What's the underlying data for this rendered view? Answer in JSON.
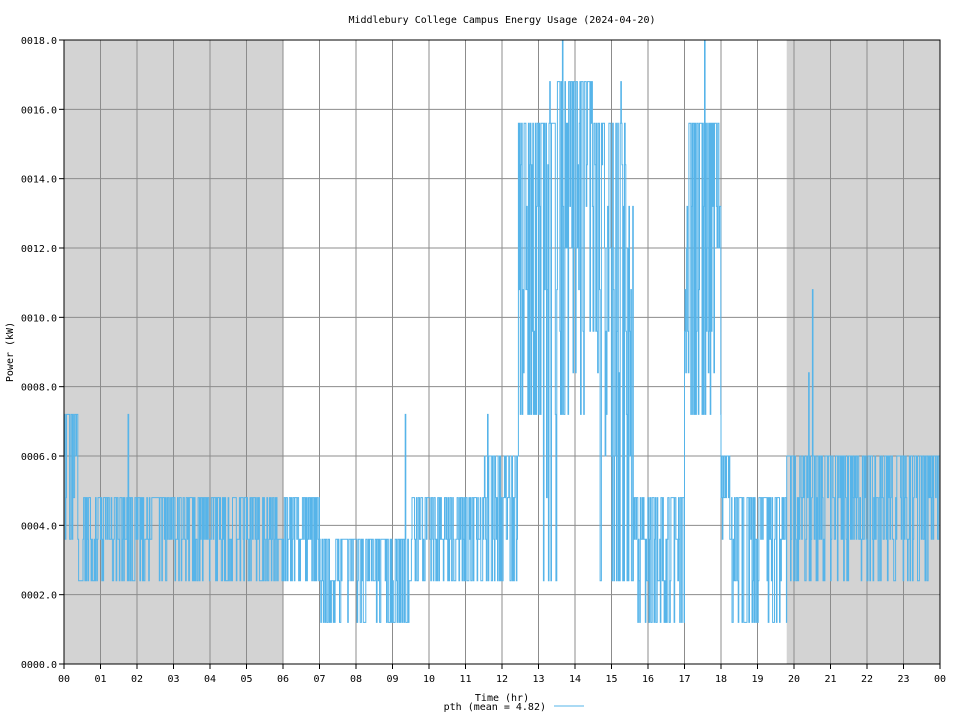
{
  "chart_data": {
    "type": "line",
    "title": "Middlebury College Campus Energy Usage (2024-04-20)",
    "xlabel": "Time (hr)",
    "ylabel": "Power (kW)",
    "xlim": [
      0,
      24
    ],
    "ylim": [
      0,
      18
    ],
    "x_tick_labels": [
      "00",
      "01",
      "02",
      "03",
      "04",
      "05",
      "06",
      "07",
      "08",
      "09",
      "10",
      "11",
      "12",
      "13",
      "14",
      "15",
      "16",
      "17",
      "18",
      "19",
      "20",
      "21",
      "22",
      "23",
      "00"
    ],
    "y_ticks": [
      0,
      2,
      4,
      6,
      8,
      10,
      12,
      14,
      16,
      18
    ],
    "y_tick_labels": [
      "0000.0",
      "0002.0",
      "0004.0",
      "0006.0",
      "0008.0",
      "0010.0",
      "0012.0",
      "0014.0",
      "0016.0",
      "0018.0"
    ],
    "grid": true,
    "legend_position": "bottom-center",
    "shaded_periods": [
      {
        "start": 0,
        "end": 6
      },
      {
        "start": 19.8,
        "end": 24
      }
    ],
    "series": [
      {
        "name": "pth (mean = 4.82)",
        "color": "#56b4e9",
        "segments": [
          {
            "start": 0.0,
            "end": 0.4,
            "base": 4.8,
            "peak": 7.2,
            "low": 3.6
          },
          {
            "start": 0.4,
            "end": 6.0,
            "base": 3.8,
            "peak": 4.8,
            "low": 2.4
          },
          {
            "start": 6.0,
            "end": 7.0,
            "base": 3.6,
            "peak": 4.8,
            "low": 2.4
          },
          {
            "start": 7.0,
            "end": 9.5,
            "base": 2.8,
            "peak": 3.6,
            "low": 1.2
          },
          {
            "start": 9.5,
            "end": 11.5,
            "base": 3.6,
            "peak": 4.8,
            "low": 2.4
          },
          {
            "start": 11.5,
            "end": 12.45,
            "base": 4.2,
            "peak": 6.0,
            "low": 2.4
          },
          {
            "start": 12.45,
            "end": 13.1,
            "base": 12.0,
            "peak": 15.6,
            "low": 7.2
          },
          {
            "start": 13.1,
            "end": 13.5,
            "base": 9.0,
            "peak": 15.6,
            "low": 2.4
          },
          {
            "start": 13.5,
            "end": 14.5,
            "base": 12.0,
            "peak": 16.8,
            "low": 7.2
          },
          {
            "start": 14.5,
            "end": 15.6,
            "base": 10.0,
            "peak": 15.6,
            "low": 2.4
          },
          {
            "start": 15.6,
            "end": 17.0,
            "base": 3.6,
            "peak": 4.8,
            "low": 1.2
          },
          {
            "start": 17.0,
            "end": 18.0,
            "base": 11.0,
            "peak": 15.6,
            "low": 7.2
          },
          {
            "start": 18.0,
            "end": 18.3,
            "base": 5.0,
            "peak": 6.0,
            "low": 3.6
          },
          {
            "start": 18.3,
            "end": 19.8,
            "base": 3.6,
            "peak": 4.8,
            "low": 1.2
          },
          {
            "start": 19.8,
            "end": 21.0,
            "base": 4.4,
            "peak": 6.0,
            "low": 2.4
          },
          {
            "start": 21.0,
            "end": 24.0,
            "base": 4.4,
            "peak": 6.0,
            "low": 2.4
          }
        ],
        "spikes": [
          {
            "x": 0.2,
            "y": 7.2
          },
          {
            "x": 1.75,
            "y": 7.2
          },
          {
            "x": 9.35,
            "y": 7.2
          },
          {
            "x": 11.6,
            "y": 7.2
          },
          {
            "x": 13.3,
            "y": 16.8
          },
          {
            "x": 13.65,
            "y": 18.0
          },
          {
            "x": 15.25,
            "y": 16.8
          },
          {
            "x": 17.2,
            "y": 15.6
          },
          {
            "x": 17.55,
            "y": 18.0
          },
          {
            "x": 20.5,
            "y": 10.8
          },
          {
            "x": 20.4,
            "y": 8.4
          }
        ]
      }
    ]
  }
}
